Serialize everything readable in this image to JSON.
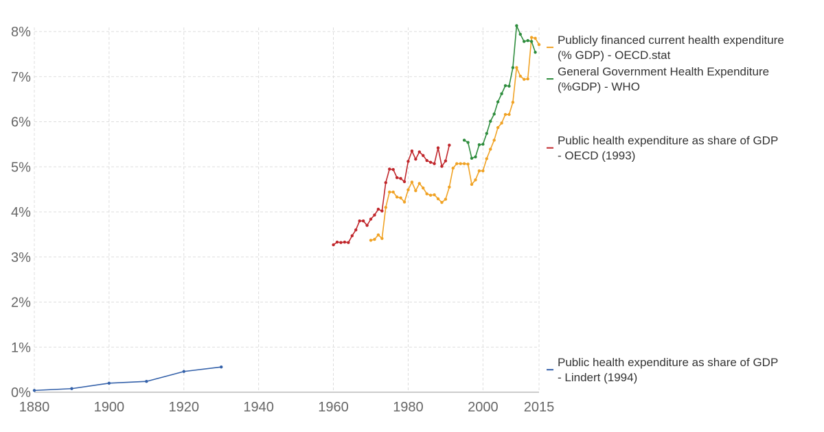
{
  "chart_data": {
    "type": "line",
    "title": "",
    "xlabel": "",
    "ylabel": "",
    "xlim": [
      1880,
      2015
    ],
    "ylim": [
      0,
      8
    ],
    "x_ticks": [
      1880,
      1900,
      1920,
      1940,
      1960,
      1980,
      2000,
      2015
    ],
    "x_tick_labels": [
      "1880",
      "1900",
      "1920",
      "1940",
      "1960",
      "1980",
      "2000",
      "2015"
    ],
    "y_ticks": [
      0,
      1,
      2,
      3,
      4,
      5,
      6,
      7,
      8
    ],
    "y_tick_labels": [
      "0%",
      "1%",
      "2%",
      "3%",
      "4%",
      "5%",
      "6%",
      "7%",
      "8%"
    ],
    "grid": true,
    "legend": "right",
    "series": [
      {
        "name_lines": [
          "Public health expenditure as share of GDP",
          "- Lindert (1994)"
        ],
        "color": "#3360a9",
        "points": [
          [
            1880,
            0.04
          ],
          [
            1890,
            0.08
          ],
          [
            1900,
            0.2
          ],
          [
            1910,
            0.24
          ],
          [
            1920,
            0.46
          ],
          [
            1930,
            0.56
          ]
        ]
      },
      {
        "name_lines": [
          "Public health expenditure as share of GDP",
          "- OECD (1993)"
        ],
        "color": "#c0262b",
        "points": [
          [
            1960,
            3.27
          ],
          [
            1961,
            3.33
          ],
          [
            1962,
            3.32
          ],
          [
            1963,
            3.33
          ],
          [
            1964,
            3.32
          ],
          [
            1965,
            3.47
          ],
          [
            1966,
            3.6
          ],
          [
            1967,
            3.8
          ],
          [
            1968,
            3.8
          ],
          [
            1969,
            3.7
          ],
          [
            1970,
            3.84
          ],
          [
            1971,
            3.93
          ],
          [
            1972,
            4.06
          ],
          [
            1973,
            4.02
          ],
          [
            1974,
            4.65
          ],
          [
            1975,
            4.95
          ],
          [
            1976,
            4.94
          ],
          [
            1977,
            4.76
          ],
          [
            1978,
            4.74
          ],
          [
            1979,
            4.67
          ],
          [
            1980,
            5.12
          ],
          [
            1981,
            5.35
          ],
          [
            1982,
            5.17
          ],
          [
            1983,
            5.33
          ],
          [
            1984,
            5.25
          ],
          [
            1985,
            5.14
          ],
          [
            1986,
            5.1
          ],
          [
            1987,
            5.07
          ],
          [
            1988,
            5.42
          ],
          [
            1989,
            5.01
          ],
          [
            1990,
            5.13
          ],
          [
            1991,
            5.48
          ]
        ]
      },
      {
        "name_lines": [
          "Publicly financed current health expenditure",
          "(% GDP) - OECD.stat"
        ],
        "color": "#f0a224",
        "points": [
          [
            1970,
            3.37
          ],
          [
            1971,
            3.39
          ],
          [
            1972,
            3.49
          ],
          [
            1973,
            3.41
          ],
          [
            1974,
            4.1
          ],
          [
            1975,
            4.44
          ],
          [
            1976,
            4.44
          ],
          [
            1977,
            4.33
          ],
          [
            1978,
            4.31
          ],
          [
            1979,
            4.22
          ],
          [
            1980,
            4.49
          ],
          [
            1981,
            4.66
          ],
          [
            1982,
            4.47
          ],
          [
            1983,
            4.63
          ],
          [
            1984,
            4.53
          ],
          [
            1985,
            4.4
          ],
          [
            1986,
            4.37
          ],
          [
            1987,
            4.38
          ],
          [
            1988,
            4.29
          ],
          [
            1989,
            4.21
          ],
          [
            1990,
            4.28
          ],
          [
            1991,
            4.55
          ],
          [
            1992,
            4.97
          ],
          [
            1993,
            5.07
          ],
          [
            1994,
            5.07
          ],
          [
            1995,
            5.07
          ],
          [
            1996,
            5.06
          ],
          [
            1997,
            4.61
          ],
          [
            1998,
            4.71
          ],
          [
            1999,
            4.91
          ],
          [
            2000,
            4.91
          ],
          [
            2001,
            5.18
          ],
          [
            2002,
            5.39
          ],
          [
            2003,
            5.59
          ],
          [
            2004,
            5.87
          ],
          [
            2005,
            5.97
          ],
          [
            2006,
            6.16
          ],
          [
            2007,
            6.16
          ],
          [
            2008,
            6.43
          ],
          [
            2009,
            7.2
          ],
          [
            2010,
            7.01
          ],
          [
            2011,
            6.94
          ],
          [
            2012,
            6.95
          ],
          [
            2013,
            7.87
          ],
          [
            2014,
            7.85
          ],
          [
            2015,
            7.71
          ]
        ]
      },
      {
        "name_lines": [
          "General Government Health Expenditure",
          "(%GDP) - WHO"
        ],
        "color": "#2d8c3c",
        "points": [
          [
            1995,
            5.59
          ],
          [
            1996,
            5.54
          ],
          [
            1997,
            5.19
          ],
          [
            1998,
            5.22
          ],
          [
            1999,
            5.49
          ],
          [
            2000,
            5.5
          ],
          [
            2001,
            5.74
          ],
          [
            2002,
            6.01
          ],
          [
            2003,
            6.17
          ],
          [
            2004,
            6.44
          ],
          [
            2005,
            6.62
          ],
          [
            2006,
            6.8
          ],
          [
            2007,
            6.79
          ],
          [
            2008,
            7.2
          ],
          [
            2009,
            8.13
          ],
          [
            2010,
            7.94
          ],
          [
            2011,
            7.78
          ],
          [
            2012,
            7.8
          ],
          [
            2013,
            7.78
          ],
          [
            2014,
            7.54
          ]
        ]
      }
    ]
  }
}
